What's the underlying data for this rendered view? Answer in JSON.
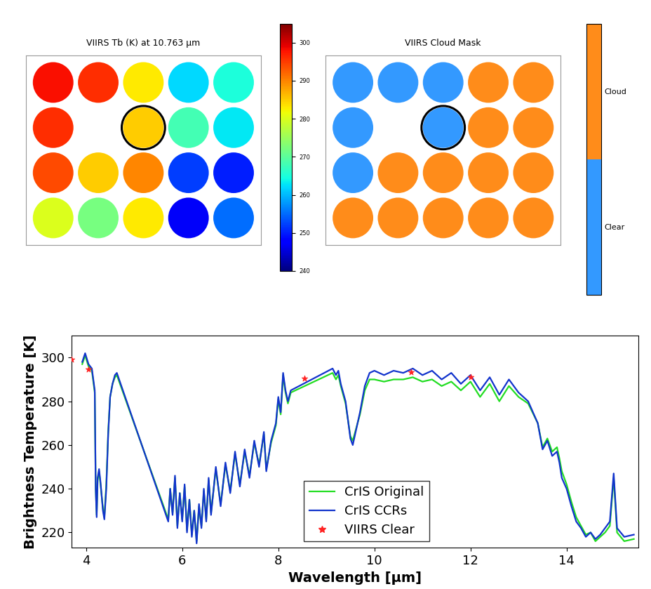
{
  "chart_data": [
    {
      "type": "heatmap",
      "title": "VIIRS Tb (K) at 10.763 μm",
      "tick_labels": false,
      "cells": [
        [
          298,
          296,
          283,
          262,
          265
        ],
        [
          296,
          null,
          285,
          268,
          263
        ],
        [
          294,
          285,
          290,
          252,
          250
        ],
        [
          280,
          272,
          283,
          247,
          255
        ]
      ],
      "colorbar_range": [
        240,
        305
      ],
      "colorbar_ticks": [
        240,
        250,
        260,
        270,
        280,
        290,
        300
      ]
    },
    {
      "type": "mask",
      "title": "VIIRS Cloud Mask",
      "tick_labels": false,
      "categories": [
        "Clear",
        "Cloud"
      ],
      "colors": [
        "#3399ff",
        "#ff8c1a"
      ],
      "cells": [
        [
          "Clear",
          "Clear",
          "Clear",
          "Cloud",
          "Cloud"
        ],
        [
          "Clear",
          null,
          "Clear",
          "Cloud",
          "Cloud"
        ],
        [
          "Clear",
          "Cloud",
          "Cloud",
          "Cloud",
          "Cloud"
        ],
        [
          "Cloud",
          "Cloud",
          "Cloud",
          "Cloud",
          "Cloud"
        ]
      ]
    },
    {
      "type": "line",
      "x_label": "Wavelength [μm]",
      "y_label": "Brightness Temperature [K]",
      "xlim": [
        3.7,
        15.5
      ],
      "xticks": [
        4,
        6,
        8,
        10,
        12,
        14
      ],
      "ylim": [
        213,
        310
      ],
      "yticks": [
        220,
        240,
        260,
        280,
        300
      ],
      "legend": "lower center",
      "grid": false,
      "series": [
        {
          "name": "CrIS Original",
          "color": "#22dd22",
          "type": "line",
          "x": [
            3.92,
            3.98,
            4.05,
            4.12,
            4.18,
            4.2,
            4.22,
            4.24,
            4.27,
            4.3,
            4.35,
            4.38,
            4.42,
            4.46,
            4.5,
            4.55,
            4.6,
            4.64,
            5.71,
            5.75,
            5.8,
            5.85,
            5.9,
            5.95,
            6.0,
            6.05,
            6.1,
            6.15,
            6.2,
            6.25,
            6.3,
            6.35,
            6.4,
            6.45,
            6.5,
            6.55,
            6.6,
            6.7,
            6.8,
            6.9,
            7.0,
            7.1,
            7.2,
            7.3,
            7.4,
            7.5,
            7.6,
            7.7,
            7.75,
            7.85,
            7.95,
            8.0,
            8.05,
            8.1,
            8.15,
            8.2,
            8.26,
            9.13,
            9.2,
            9.25,
            9.3,
            9.4,
            9.5,
            9.55,
            9.6,
            9.7,
            9.8,
            9.9,
            10.0,
            10.2,
            10.4,
            10.6,
            10.8,
            11.0,
            11.2,
            11.4,
            11.6,
            11.8,
            12.0,
            12.2,
            12.4,
            12.6,
            12.8,
            13.0,
            13.2,
            13.4,
            13.5,
            13.6,
            13.7,
            13.8,
            13.85,
            13.9,
            14.0,
            14.1,
            14.2,
            14.3,
            14.4,
            14.5,
            14.6,
            14.7,
            14.8,
            14.9,
            14.98,
            15.05,
            15.2,
            15.4
          ],
          "values": [
            297,
            301,
            296,
            294,
            284,
            240,
            228,
            244,
            248,
            242,
            231,
            227,
            242,
            266,
            282,
            288,
            291,
            292,
            226,
            240,
            229,
            245,
            223,
            238,
            226,
            241,
            221,
            235,
            219,
            230,
            216,
            232,
            223,
            239,
            226,
            244,
            229,
            249,
            233,
            251,
            239,
            256,
            242,
            257,
            246,
            261,
            251,
            265,
            249,
            261,
            269,
            281,
            274,
            292,
            284,
            279,
            284,
            293,
            290,
            292,
            287,
            279,
            264,
            262,
            266,
            274,
            285,
            290,
            290,
            289,
            290,
            290,
            291,
            289,
            290,
            287,
            289,
            285,
            289,
            282,
            288,
            280,
            287,
            282,
            279,
            270,
            259,
            263,
            257,
            259,
            254,
            248,
            242,
            234,
            227,
            223,
            219,
            220,
            216,
            218,
            220,
            223,
            245,
            220,
            216,
            217
          ]
        },
        {
          "name": "CrIS CCRs",
          "color": "#1133cc",
          "type": "line",
          "x": [
            3.92,
            3.98,
            4.05,
            4.12,
            4.18,
            4.2,
            4.22,
            4.24,
            4.27,
            4.3,
            4.35,
            4.38,
            4.42,
            4.46,
            4.5,
            4.55,
            4.6,
            4.64,
            5.71,
            5.75,
            5.8,
            5.85,
            5.9,
            5.95,
            6.0,
            6.05,
            6.1,
            6.15,
            6.2,
            6.25,
            6.3,
            6.35,
            6.4,
            6.45,
            6.5,
            6.55,
            6.6,
            6.7,
            6.8,
            6.9,
            7.0,
            7.1,
            7.2,
            7.3,
            7.4,
            7.5,
            7.6,
            7.7,
            7.75,
            7.85,
            7.95,
            8.0,
            8.05,
            8.1,
            8.15,
            8.2,
            8.26,
            9.13,
            9.2,
            9.25,
            9.3,
            9.4,
            9.5,
            9.55,
            9.6,
            9.7,
            9.8,
            9.9,
            10.0,
            10.2,
            10.4,
            10.6,
            10.8,
            11.0,
            11.2,
            11.4,
            11.6,
            11.8,
            12.0,
            12.2,
            12.4,
            12.6,
            12.8,
            13.0,
            13.2,
            13.4,
            13.5,
            13.6,
            13.7,
            13.8,
            13.85,
            13.9,
            14.0,
            14.1,
            14.2,
            14.3,
            14.4,
            14.5,
            14.6,
            14.7,
            14.8,
            14.9,
            14.98,
            15.05,
            15.2,
            15.4
          ],
          "values": [
            298,
            302,
            297,
            295,
            285,
            240,
            227,
            245,
            249,
            243,
            230,
            226,
            240,
            265,
            282,
            288,
            292,
            293,
            225,
            240,
            228,
            246,
            222,
            238,
            225,
            242,
            220,
            235,
            218,
            230,
            215,
            233,
            222,
            240,
            225,
            245,
            228,
            250,
            232,
            252,
            238,
            257,
            241,
            258,
            245,
            262,
            250,
            266,
            248,
            262,
            270,
            282,
            275,
            293,
            285,
            280,
            285,
            295,
            292,
            294,
            288,
            280,
            263,
            260,
            265,
            275,
            287,
            293,
            294,
            292,
            294,
            293,
            295,
            292,
            294,
            290,
            293,
            288,
            292,
            285,
            291,
            283,
            290,
            284,
            280,
            270,
            258,
            262,
            255,
            257,
            252,
            245,
            240,
            232,
            225,
            222,
            218,
            220,
            217,
            219,
            222,
            225,
            247,
            222,
            218,
            219
          ]
        },
        {
          "name": "VIIRS Clear",
          "color": "#ff2222",
          "type": "scatter",
          "marker": "*",
          "x": [
            3.7,
            4.05,
            8.55,
            10.76,
            12.0
          ],
          "values": [
            299,
            294.5,
            290.5,
            293.5,
            291
          ]
        }
      ]
    }
  ]
}
